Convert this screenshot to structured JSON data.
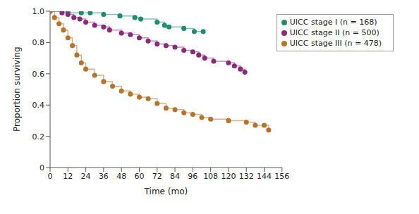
{
  "chart_data": {
    "type": "line",
    "line_style": "step",
    "marker": "circle",
    "xlabel": "Time (mo)",
    "ylabel": "Proportion surviving",
    "xlim": [
      0,
      156
    ],
    "xticks": [
      0,
      12,
      24,
      36,
      48,
      60,
      72,
      84,
      96,
      108,
      120,
      132,
      144,
      156
    ],
    "ylim": [
      0,
      1
    ],
    "yticks": [
      0,
      0.2,
      0.4,
      0.6,
      0.8,
      {
        "value": 1,
        "label": "1.0"
      }
    ],
    "legend": "upper right",
    "series": [
      {
        "name": "UICC stage I (n = 168)",
        "color": "#1f8c6e",
        "x": [
          0,
          12,
          21,
          27,
          36,
          47,
          57,
          61,
          72,
          77,
          80,
          90,
          97,
          103
        ],
        "values": [
          1.0,
          0.99,
          0.99,
          0.99,
          0.98,
          0.97,
          0.96,
          0.95,
          0.93,
          0.91,
          0.9,
          0.89,
          0.87,
          0.87
        ]
      },
      {
        "name": "UICC stage II (n = 500)",
        "color": "#8b2a7a",
        "x": [
          0,
          8,
          12,
          16,
          20,
          24,
          30,
          36,
          40,
          48,
          54,
          60,
          66,
          72,
          78,
          84,
          90,
          96,
          100,
          104,
          110,
          120,
          124,
          128,
          131
        ],
        "values": [
          1.0,
          0.99,
          0.98,
          0.96,
          0.95,
          0.93,
          0.91,
          0.9,
          0.88,
          0.86,
          0.85,
          0.83,
          0.81,
          0.79,
          0.78,
          0.77,
          0.75,
          0.74,
          0.72,
          0.7,
          0.68,
          0.67,
          0.65,
          0.63,
          0.61
        ]
      },
      {
        "name": "UICC stage III (n = 478)",
        "color": "#b8732a",
        "x": [
          0,
          3,
          6,
          9,
          12,
          15,
          18,
          21,
          24,
          30,
          36,
          42,
          48,
          54,
          60,
          66,
          72,
          78,
          84,
          90,
          96,
          102,
          108,
          120,
          132,
          138,
          144,
          147
        ],
        "values": [
          1.0,
          0.96,
          0.92,
          0.88,
          0.83,
          0.78,
          0.72,
          0.67,
          0.63,
          0.59,
          0.55,
          0.52,
          0.49,
          0.47,
          0.45,
          0.44,
          0.41,
          0.38,
          0.37,
          0.35,
          0.34,
          0.32,
          0.31,
          0.3,
          0.29,
          0.27,
          0.27,
          0.24
        ]
      }
    ]
  }
}
